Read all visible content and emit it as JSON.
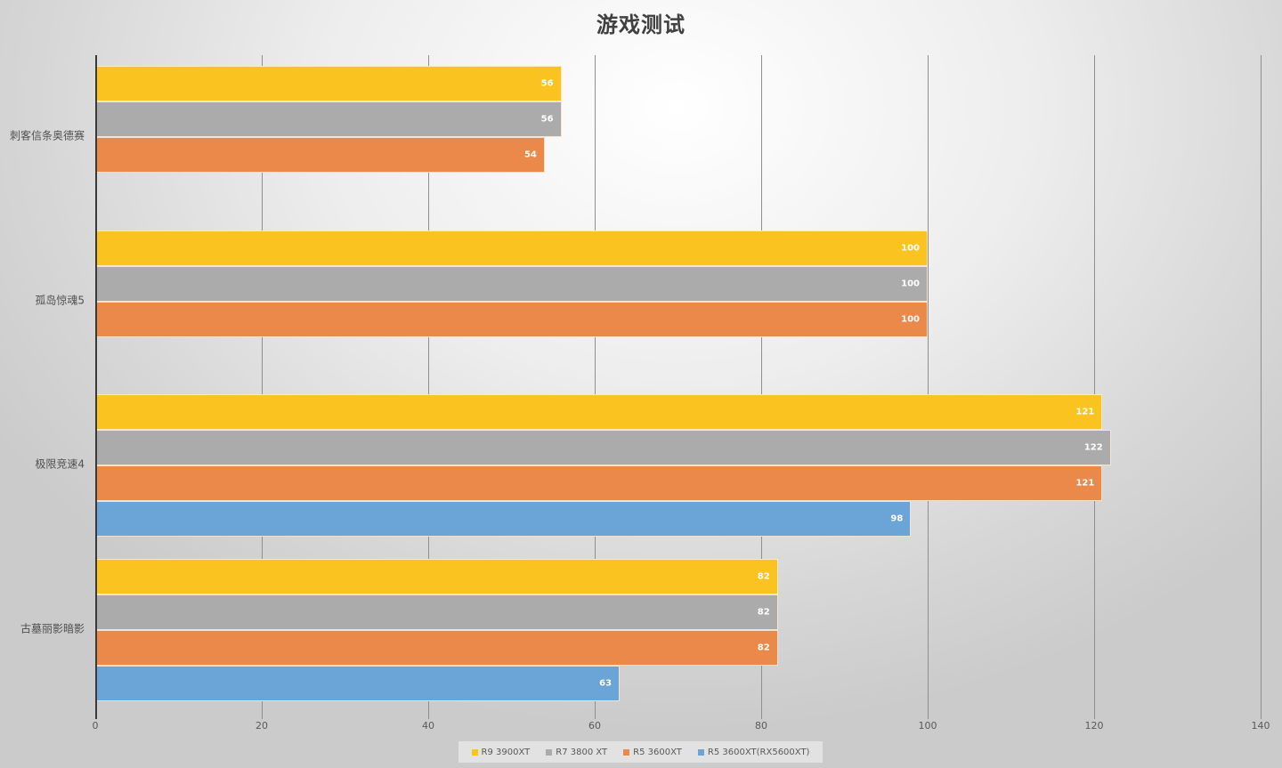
{
  "chart_data": {
    "type": "bar",
    "orientation": "horizontal",
    "title": "游戏测试",
    "xlabel": "",
    "ylabel": "",
    "xlim": [
      0,
      140
    ],
    "x_ticks": [
      0,
      20,
      40,
      60,
      80,
      100,
      120,
      140
    ],
    "grid": true,
    "legend_position": "bottom",
    "categories": [
      "刺客信条奥德赛",
      "孤岛惊魂5",
      "极限竞速4",
      "古墓丽影暗影"
    ],
    "series": [
      {
        "name": "R9 3900XT",
        "color": "#FBC31F",
        "values": [
          56,
          100,
          121,
          82
        ]
      },
      {
        "name": "R7 3800 XT",
        "color": "#ABABAB",
        "values": [
          56,
          100,
          122,
          82
        ]
      },
      {
        "name": "R5 3600XT",
        "color": "#EB894A",
        "values": [
          54,
          100,
          121,
          82
        ]
      },
      {
        "name": "R5 3600XT(RX5600XT)",
        "color": "#6BA4D6",
        "values": [
          null,
          null,
          98,
          63
        ]
      }
    ]
  }
}
